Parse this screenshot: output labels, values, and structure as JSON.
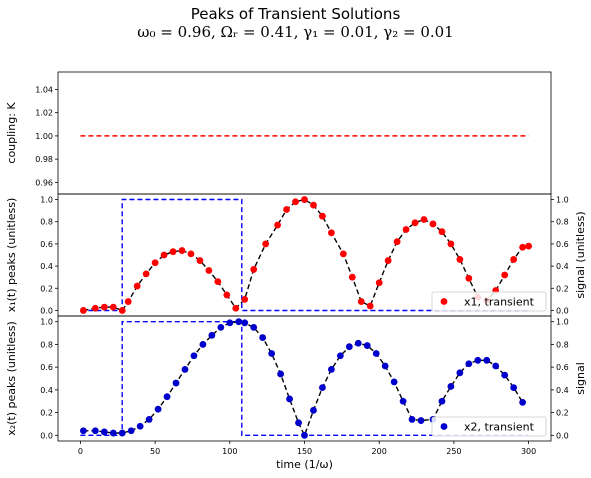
{
  "title": "Peaks of Transient Solutions",
  "subtitle": "ω₀ =  0.96, Ωᵣ =  0.41, γ₁ =  0.01, γ₂ =  0.01",
  "colors": {
    "x1": "#ff0000",
    "x2": "#0000cc",
    "signal": "#0000ff",
    "coupling": "#ff0000",
    "peakline": "#000000"
  },
  "chart_data": [
    {
      "type": "line",
      "panel": "coupling",
      "ylabel": "coupling: K",
      "ylim": [
        0.95,
        1.055
      ],
      "yticks": [
        "0.96",
        "0.98",
        "1.00",
        "1.02",
        "1.04"
      ],
      "ytick_values": [
        0.96,
        0.98,
        1.0,
        1.02,
        1.04
      ],
      "series": [
        {
          "style": "dashed",
          "x": [
            0,
            300
          ],
          "y": [
            1.0,
            1.0
          ]
        }
      ]
    },
    {
      "type": "scatter",
      "panel": "x1",
      "ylabel": "x₁(t) peaks (unitless)",
      "ylabel_right": "signal (unitless)",
      "ylim": [
        -0.05,
        1.05
      ],
      "yticks": [
        "0.0",
        "0.2",
        "0.4",
        "0.6",
        "0.8",
        "1.0"
      ],
      "ytick_values": [
        0.0,
        0.2,
        0.4,
        0.6,
        0.8,
        1.0
      ],
      "legend": "top-right",
      "series": [
        {
          "name": "x1, transient",
          "x": [
            2,
            10,
            16,
            22,
            28,
            32,
            38,
            44,
            50,
            56,
            62,
            68,
            74,
            80,
            86,
            92,
            98,
            104,
            110,
            116,
            124,
            132,
            138,
            144,
            150,
            156,
            162,
            168,
            176,
            182,
            188,
            194,
            200,
            206,
            212,
            218,
            224,
            230,
            236,
            242,
            248,
            254,
            260,
            266,
            272,
            278,
            284,
            290,
            296,
            300
          ],
          "y": [
            0.0,
            0.02,
            0.03,
            0.03,
            0.0,
            0.08,
            0.22,
            0.33,
            0.43,
            0.5,
            0.53,
            0.54,
            0.51,
            0.45,
            0.36,
            0.26,
            0.14,
            0.02,
            0.1,
            0.37,
            0.6,
            0.77,
            0.91,
            0.98,
            1.0,
            0.95,
            0.85,
            0.7,
            0.51,
            0.3,
            0.08,
            0.04,
            0.25,
            0.45,
            0.62,
            0.73,
            0.79,
            0.82,
            0.78,
            0.71,
            0.6,
            0.46,
            0.29,
            0.12,
            0.09,
            0.18,
            0.32,
            0.46,
            0.57,
            0.58
          ]
        }
      ],
      "signal": {
        "x": [
          0,
          28,
          28,
          108,
          108,
          300
        ],
        "y": [
          0,
          0,
          1.0,
          1.0,
          0,
          0
        ],
        "yticks_right": [
          "0.0",
          "0.2",
          "0.4",
          "0.6",
          "0.8",
          "1.0"
        ]
      }
    },
    {
      "type": "scatter",
      "panel": "x2",
      "ylabel": "x₂(t) peaks (unitless)",
      "ylabel_right": "signal",
      "xlabel": "time (1/ω)",
      "xticks": [
        "0",
        "50",
        "100",
        "150",
        "200",
        "250",
        "300"
      ],
      "xtick_values": [
        0,
        50,
        100,
        150,
        200,
        250,
        300
      ],
      "xlim": [
        -15,
        315
      ],
      "ylim": [
        -0.05,
        1.05
      ],
      "yticks": [
        "0.0",
        "0.2",
        "0.4",
        "0.6",
        "0.8",
        "1.0"
      ],
      "ytick_values": [
        0.0,
        0.2,
        0.4,
        0.6,
        0.8,
        1.0
      ],
      "legend": "bottom-right",
      "series": [
        {
          "name": "x2, transient",
          "x": [
            2,
            10,
            16,
            22,
            28,
            34,
            40,
            46,
            52,
            58,
            64,
            70,
            76,
            82,
            88,
            94,
            100,
            106,
            110,
            116,
            122,
            128,
            134,
            140,
            146,
            150,
            156,
            162,
            168,
            174,
            180,
            186,
            192,
            198,
            204,
            210,
            216,
            222,
            228,
            236,
            242,
            248,
            254,
            260,
            266,
            272,
            278,
            284,
            290,
            296
          ],
          "y": [
            0.04,
            0.04,
            0.03,
            0.02,
            0.02,
            0.04,
            0.08,
            0.14,
            0.23,
            0.34,
            0.46,
            0.58,
            0.7,
            0.8,
            0.88,
            0.95,
            0.99,
            1.0,
            0.99,
            0.95,
            0.86,
            0.72,
            0.54,
            0.32,
            0.11,
            0.0,
            0.22,
            0.42,
            0.58,
            0.7,
            0.78,
            0.81,
            0.79,
            0.72,
            0.61,
            0.47,
            0.3,
            0.14,
            0.13,
            0.14,
            0.3,
            0.43,
            0.55,
            0.63,
            0.66,
            0.66,
            0.61,
            0.53,
            0.42,
            0.29
          ]
        }
      ],
      "signal": {
        "x": [
          0,
          28,
          28,
          108,
          108,
          300
        ],
        "y": [
          0,
          0,
          1.0,
          1.0,
          0,
          0
        ],
        "yticks_right": [
          "0.0",
          "0.2",
          "0.4",
          "0.6",
          "0.8",
          "1.0"
        ]
      }
    }
  ]
}
